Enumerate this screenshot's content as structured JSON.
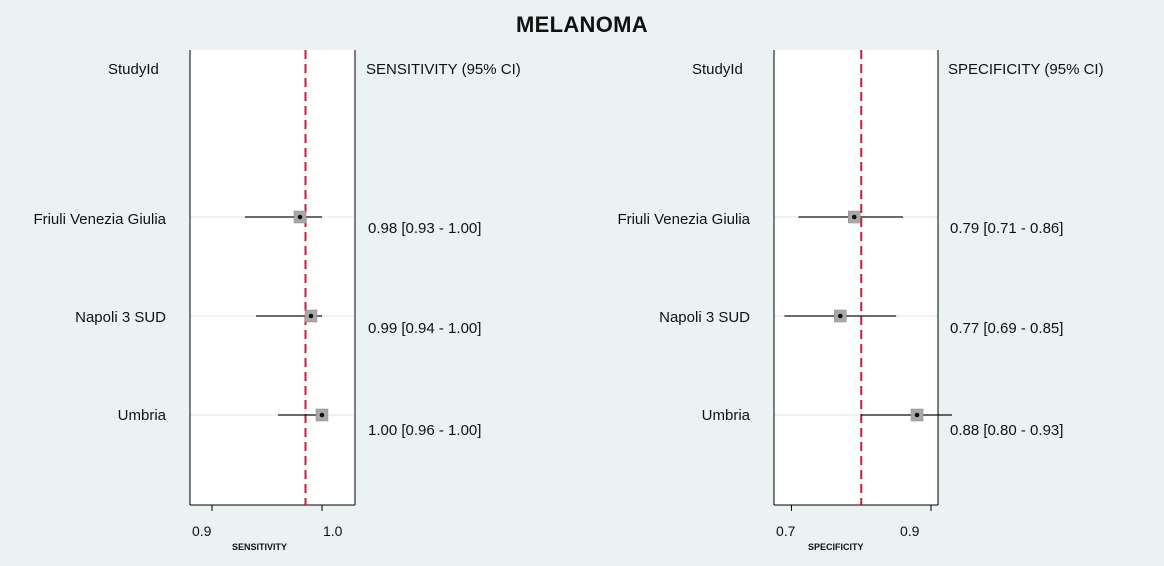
{
  "title": "MELANOMA",
  "chart_data": [
    {
      "type": "forest",
      "study_header": "StudyId",
      "estimate_header": "SENSITIVITY (95% CI)",
      "xlabel": "SENSITIVITY",
      "xlim": [
        0.88,
        1.03
      ],
      "xticks": [
        "0.9",
        "1.0"
      ],
      "xtick_values": [
        0.9,
        1.0
      ],
      "pooled_estimate": 0.985,
      "reference_line_color": "#c41e3a",
      "studies": [
        {
          "name": "Friuli Venezia Giulia",
          "estimate": 0.98,
          "ci_low": 0.93,
          "ci_high": 1.0,
          "label": "0.98 [0.93 - 1.00]"
        },
        {
          "name": "Napoli 3 SUD",
          "estimate": 0.99,
          "ci_low": 0.94,
          "ci_high": 1.0,
          "label": "0.99 [0.94 - 1.00]"
        },
        {
          "name": "Umbria",
          "estimate": 1.0,
          "ci_low": 0.96,
          "ci_high": 1.0,
          "label": "1.00 [0.96 - 1.00]"
        }
      ]
    },
    {
      "type": "forest",
      "study_header": "StudyId",
      "estimate_header": "SPECIFICITY (95% CI)",
      "xlabel": "SPECIFICITY",
      "xlim": [
        0.675,
        0.91
      ],
      "xticks": [
        "0.7",
        "0.9"
      ],
      "xtick_values": [
        0.7,
        0.9
      ],
      "pooled_estimate": 0.8,
      "reference_line_color": "#c41e3a",
      "studies": [
        {
          "name": "Friuli Venezia Giulia",
          "estimate": 0.79,
          "ci_low": 0.71,
          "ci_high": 0.86,
          "label": "0.79 [0.71 - 0.86]"
        },
        {
          "name": "Napoli 3 SUD",
          "estimate": 0.77,
          "ci_low": 0.69,
          "ci_high": 0.85,
          "label": "0.77 [0.69 - 0.85]"
        },
        {
          "name": "Umbria",
          "estimate": 0.88,
          "ci_low": 0.8,
          "ci_high": 0.93,
          "label": "0.88 [0.80 - 0.93]"
        }
      ]
    }
  ]
}
